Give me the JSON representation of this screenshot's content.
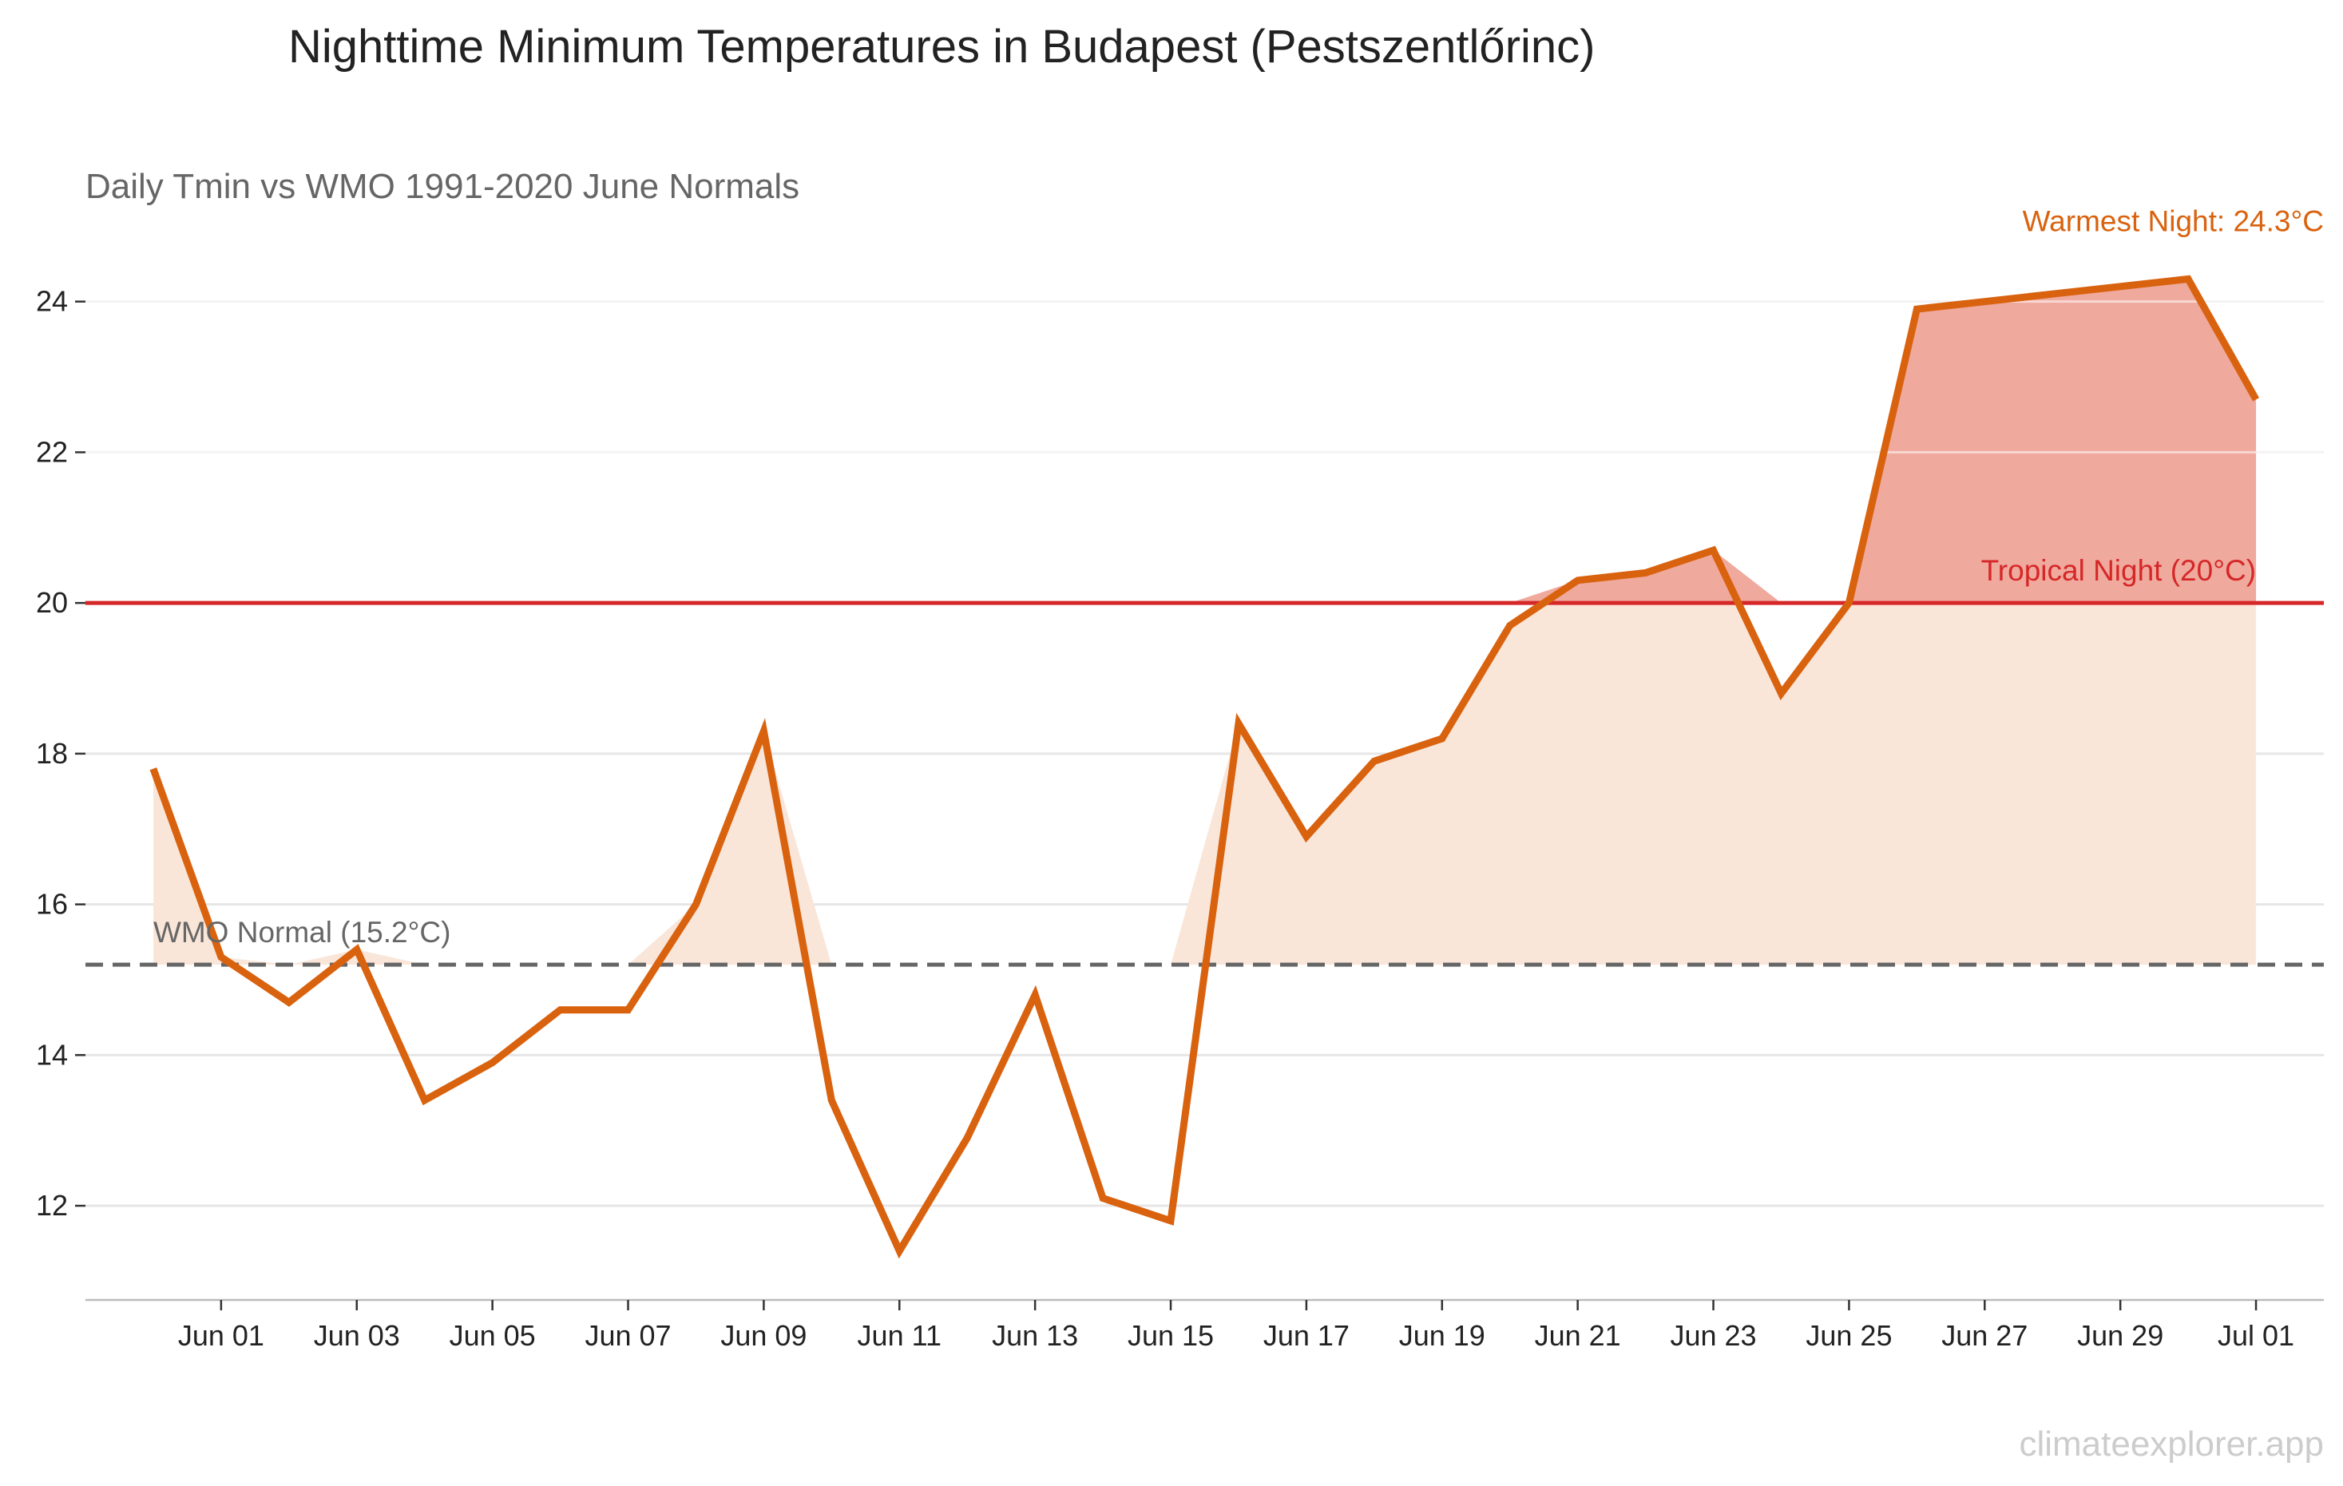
{
  "title": "Nighttime Minimum Temperatures in Budapest (Pestszentlőrinc)",
  "subtitle": "Daily Tmin vs WMO 1991-2020 June Normals",
  "watermark": "climateexplorer.app",
  "colors": {
    "series": "#d9620f",
    "fill_below": "#fae6d9",
    "fill_above": "#efa99d",
    "tropical_line": "#d62728",
    "normal_line": "#666666",
    "grid": "#e6e6e6",
    "axis": "#bbbbbb"
  },
  "chart_data": {
    "type": "line",
    "x": [
      "2024-05-31",
      "2024-06-01",
      "2024-06-02",
      "2024-06-03",
      "2024-06-04",
      "2024-06-05",
      "2024-06-06",
      "2024-06-07",
      "2024-06-08",
      "2024-06-09",
      "2024-06-10",
      "2024-06-11",
      "2024-06-12",
      "2024-06-13",
      "2024-06-14",
      "2024-06-15",
      "2024-06-16",
      "2024-06-17",
      "2024-06-18",
      "2024-06-19",
      "2024-06-20",
      "2024-06-21",
      "2024-06-22",
      "2024-06-23",
      "2024-06-24",
      "2024-06-25",
      "2024-06-26",
      "2024-06-27",
      "2024-06-28",
      "2024-06-29",
      "2024-06-30",
      "2024-07-01"
    ],
    "series": [
      {
        "values": [
          17.8,
          15.3,
          14.7,
          15.4,
          13.4,
          13.9,
          14.6,
          14.6,
          16.0,
          18.3,
          13.4,
          11.4,
          12.9,
          14.8,
          12.1,
          11.8,
          18.4,
          16.9,
          17.9,
          18.2,
          19.7,
          20.3,
          20.4,
          20.7,
          18.8,
          20.0,
          23.9,
          24.0,
          24.1,
          24.2,
          24.3,
          22.7
        ]
      }
    ],
    "xticks": {
      "dates": [
        "2024-06-01",
        "2024-06-03",
        "2024-06-05",
        "2024-06-07",
        "2024-06-09",
        "2024-06-11",
        "2024-06-13",
        "2024-06-15",
        "2024-06-17",
        "2024-06-19",
        "2024-06-21",
        "2024-06-23",
        "2024-06-25",
        "2024-06-27",
        "2024-06-29",
        "2024-07-01"
      ],
      "labels": [
        "Jun 01",
        "Jun 03",
        "Jun 05",
        "Jun 07",
        "Jun 09",
        "Jun 11",
        "Jun 13",
        "Jun 15",
        "Jun 17",
        "Jun 19",
        "Jun 21",
        "Jun 23",
        "Jun 25",
        "Jun 27",
        "Jun 29",
        "Jul 01"
      ]
    },
    "yticks": [
      12,
      14,
      16,
      18,
      20,
      22,
      24
    ],
    "ylim": [
      10.75,
      25.3
    ],
    "xlim": [
      "2024-05-30",
      "2024-07-02"
    ],
    "grid": "horizontal",
    "reference_lines": {
      "normal": {
        "value": 15.2,
        "label": "WMO Normal (15.2°C)",
        "style": "dashed"
      },
      "tropical": {
        "value": 20,
        "label": "Tropical Night (20°C)",
        "style": "solid"
      }
    },
    "annotations": {
      "warmest": {
        "label": "Warmest Night: 24.3°C"
      }
    },
    "xlabel": "",
    "ylabel": ""
  }
}
